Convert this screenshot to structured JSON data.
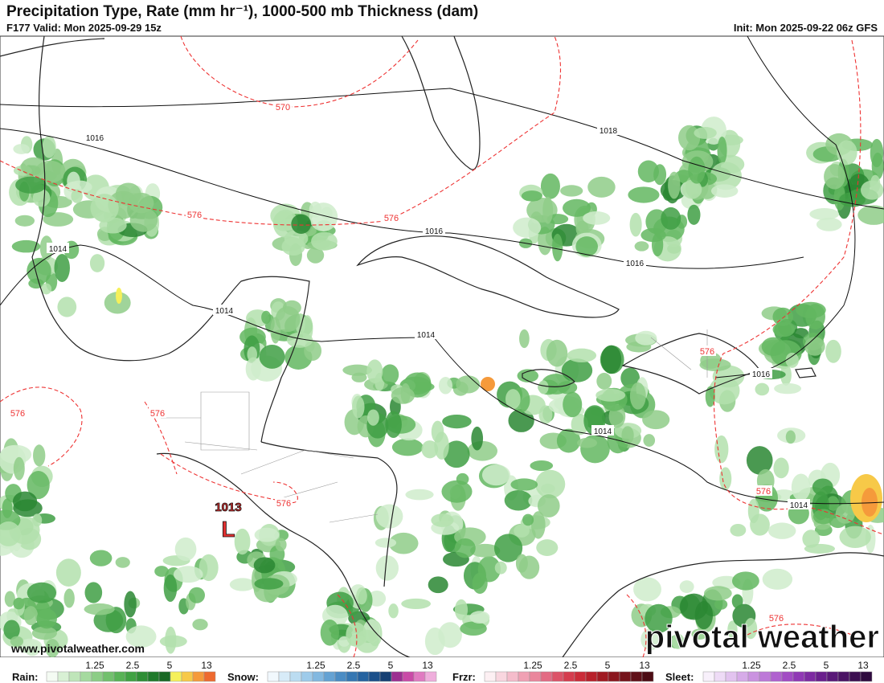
{
  "header": {
    "title": "Precipitation Type, Rate (mm hr⁻¹), 1000-500 mb Thickness (dam)",
    "valid": "F177 Valid: Mon 2025-09-29 15z",
    "init": "Init: Mon 2025-09-22 06z GFS"
  },
  "map": {
    "isobar_labels": [
      "1016",
      "1014",
      "1014",
      "1016",
      "1018",
      "1016",
      "1014",
      "1016",
      "1014",
      "1014"
    ],
    "thickness_labels": [
      "570",
      "576",
      "576",
      "576",
      "576",
      "576",
      "576",
      "576",
      "576"
    ],
    "low": {
      "pressure": "1013",
      "symbol": "L"
    },
    "website": "www.pivotalweather.com",
    "logo": "pivotal weather"
  },
  "legend": [
    {
      "label": "Rain:",
      "ticks": [
        1.25,
        2.5,
        5,
        13
      ],
      "colors": [
        "#f4fbf3",
        "#d8f0d4",
        "#bfe5b9",
        "#a5da9f",
        "#8ccd86",
        "#72c06d",
        "#58b356",
        "#40a243",
        "#2e8e35",
        "#1f7a2b",
        "#186824",
        "#f5f05a",
        "#f7c948",
        "#f59a3b",
        "#ee6a2f"
      ]
    },
    {
      "label": "Snow:",
      "ticks": [
        1.25,
        2.5,
        5,
        13
      ],
      "colors": [
        "#f1f8fd",
        "#d7ebf8",
        "#bbdcf1",
        "#9ecbea",
        "#82b8e0",
        "#64a2d3",
        "#4a8cc4",
        "#3577b3",
        "#2563a0",
        "#1a4f8a",
        "#153f73",
        "#9c2f91",
        "#c94aa7",
        "#e07ac1",
        "#efaedc"
      ]
    },
    {
      "label": "Frzr:",
      "ticks": [
        1.25,
        2.5,
        5,
        13
      ],
      "colors": [
        "#fdf0f3",
        "#f9d6df",
        "#f5bccb",
        "#f0a1b4",
        "#ea869c",
        "#e36b83",
        "#dc5368",
        "#d53c4e",
        "#cb2b38",
        "#b8202a",
        "#a11a22",
        "#8b161e",
        "#75131b",
        "#601018",
        "#4d0c14"
      ]
    },
    {
      "label": "Sleet:",
      "ticks": [
        1.25,
        2.5,
        5,
        13
      ],
      "colors": [
        "#f8f0fb",
        "#eedbf6",
        "#e2c3ef",
        "#d6abe8",
        "#ca92e0",
        "#bd79d8",
        "#b061cf",
        "#a24bc4",
        "#9038b5",
        "#7d2aa2",
        "#6a1f8d",
        "#591878",
        "#4a1364",
        "#3c0f51",
        "#2f0b3f"
      ]
    }
  ]
}
